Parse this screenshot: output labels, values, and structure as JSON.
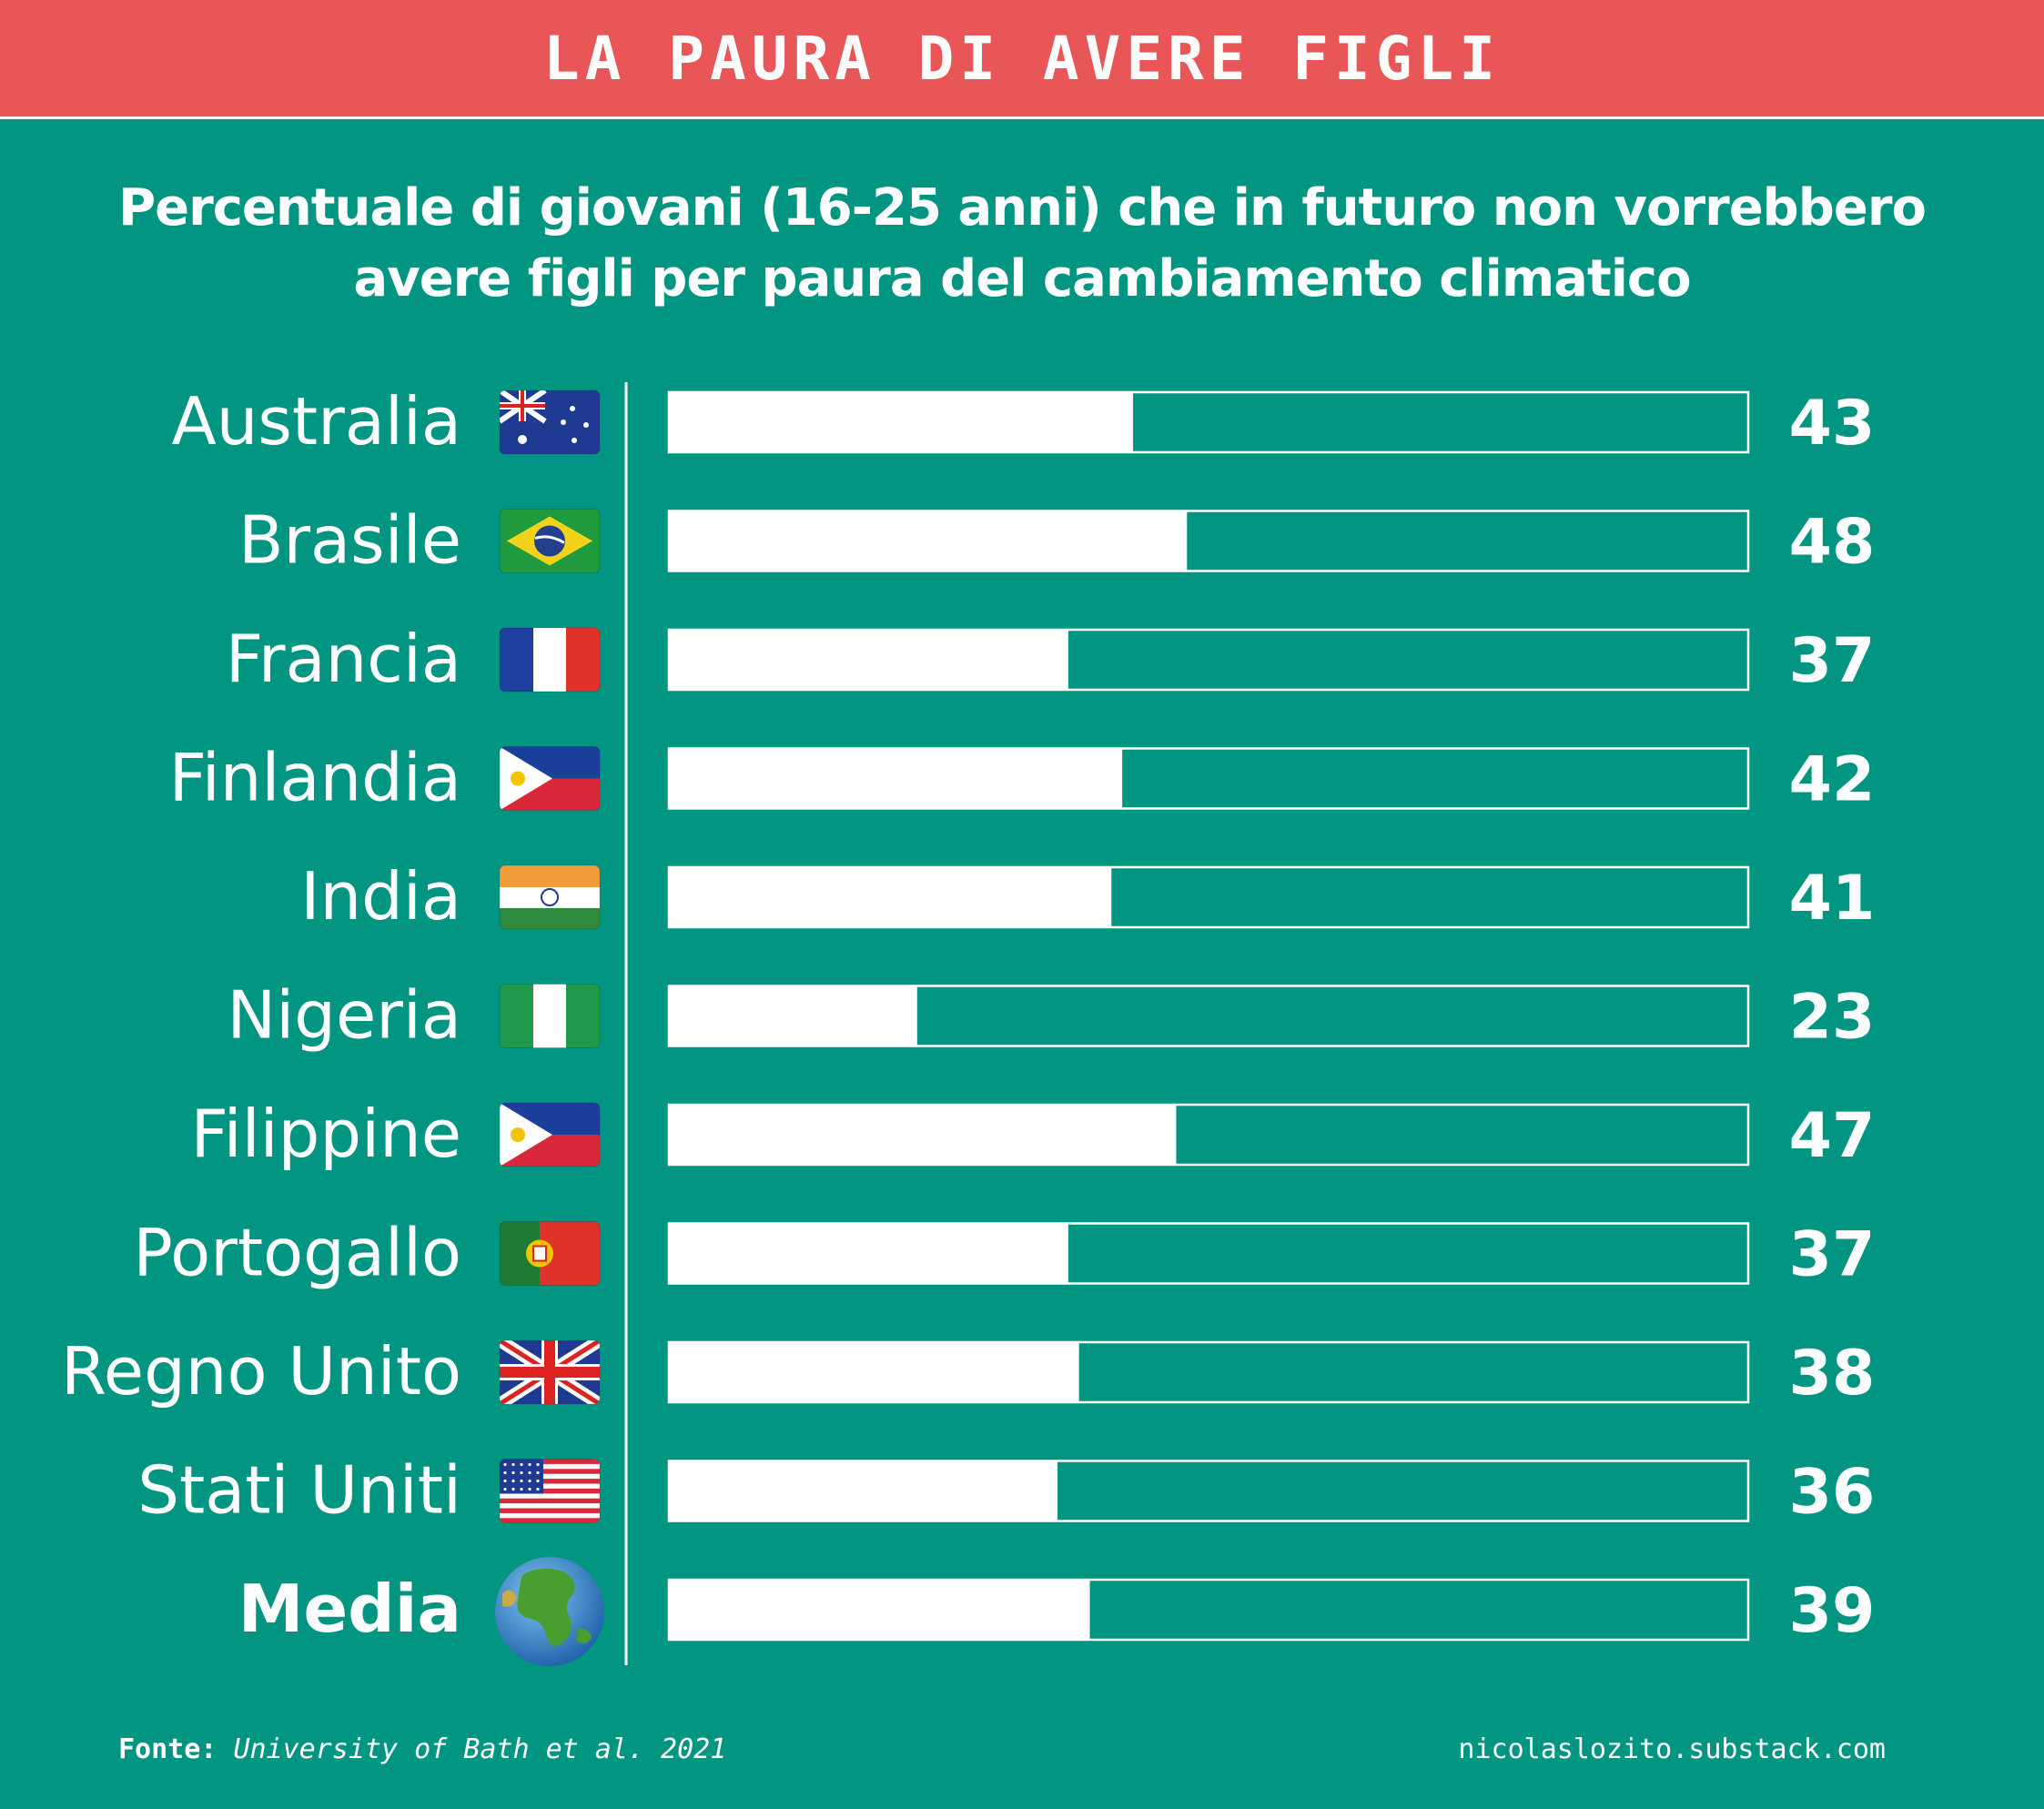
{
  "header": {
    "title": "LA PAURA DI AVERE FIGLI"
  },
  "subtitle": {
    "line1": "Percentuale di giovani (16-25 anni) che in futuro non vorrebbero",
    "line2": "avere figli per paura del cambiamento climatico"
  },
  "colors": {
    "background": "#029582",
    "header": "#E95657",
    "bar": "#FFFFFF",
    "text": "#FFFFFF"
  },
  "chart_data": {
    "type": "bar",
    "orientation": "horizontal",
    "title": "Percentuale di giovani (16-25 anni) che in futuro non vorrebbero avere figli per paura del cambiamento climatico",
    "categories": [
      "Australia",
      "Brasile",
      "Francia",
      "Finlandia",
      "India",
      "Nigeria",
      "Filippine",
      "Portogallo",
      "Regno Unito",
      "Stati Uniti",
      "Media"
    ],
    "icons": [
      "flag-australia-icon",
      "flag-brazil-icon",
      "flag-france-icon",
      "flag-philippines-icon",
      "flag-india-icon",
      "flag-nigeria-icon",
      "flag-philippines-icon",
      "flag-portugal-icon",
      "flag-uk-icon",
      "flag-usa-icon",
      "globe-icon"
    ],
    "values": [
      43,
      48,
      37,
      42,
      41,
      23,
      47,
      37,
      38,
      36,
      39
    ],
    "value_labels": [
      "43",
      "48",
      "37",
      "42",
      "41",
      "23",
      "47",
      "37",
      "38",
      "36",
      "39"
    ],
    "xlim": [
      0,
      100
    ],
    "highlight_category": "Media",
    "grid": false
  },
  "footer": {
    "source_label": "Fonte:",
    "source_text": "University of Bath et al. 2021",
    "credit": "nicolaslozito.substack.com"
  }
}
